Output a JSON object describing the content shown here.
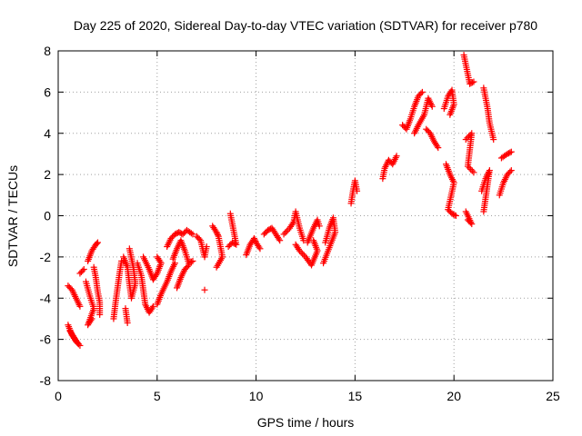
{
  "chart_data": {
    "type": "scatter",
    "title": "Day 225 of 2020, Sidereal Day-to-day VTEC variation (SDTVAR) for receiver p780",
    "xlabel": "GPS time / hours",
    "ylabel": "SDTVAR / TECUs",
    "xlim": [
      0,
      25
    ],
    "ylim": [
      -8,
      8
    ],
    "xticks": [
      0,
      5,
      10,
      15,
      20,
      25
    ],
    "yticks": [
      -8,
      -6,
      -4,
      -2,
      0,
      2,
      4,
      6,
      8
    ],
    "grid": true,
    "marker": "+",
    "color": "#ff0000",
    "series": [
      {
        "name": "SDTVAR",
        "segments": [
          [
            [
              0.5,
              -3.4
            ],
            [
              0.7,
              -3.6
            ],
            [
              0.9,
              -4.0
            ],
            [
              1.1,
              -4.4
            ]
          ],
          [
            [
              0.5,
              -5.3
            ],
            [
              0.7,
              -5.8
            ],
            [
              0.9,
              -6.1
            ],
            [
              1.1,
              -6.3
            ]
          ],
          [
            [
              0.6,
              -5.6
            ],
            [
              0.8,
              -5.9
            ],
            [
              1.0,
              -6.2
            ]
          ],
          [
            [
              1.1,
              -2.8
            ],
            [
              1.3,
              -2.6
            ]
          ],
          [
            [
              1.4,
              -3.2
            ],
            [
              1.6,
              -3.9
            ],
            [
              1.8,
              -4.5
            ],
            [
              1.5,
              -5.3
            ],
            [
              1.7,
              -5.0
            ]
          ],
          [
            [
              1.5,
              -2.2
            ],
            [
              1.7,
              -1.7
            ],
            [
              1.9,
              -1.4
            ],
            [
              2.0,
              -1.3
            ]
          ],
          [
            [
              1.8,
              -2.5
            ],
            [
              1.9,
              -3.0
            ],
            [
              2.0,
              -3.7
            ],
            [
              2.1,
              -4.2
            ],
            [
              2.1,
              -4.8
            ]
          ],
          [
            [
              2.8,
              -5.0
            ],
            [
              2.9,
              -4.2
            ],
            [
              3.0,
              -3.5
            ],
            [
              3.1,
              -2.8
            ],
            [
              3.2,
              -2.2
            ]
          ],
          [
            [
              3.3,
              -2.0
            ],
            [
              3.5,
              -2.5
            ],
            [
              3.6,
              -3.3
            ],
            [
              3.7,
              -4.0
            ],
            [
              3.9,
              -3.3
            ],
            [
              3.8,
              -2.5
            ],
            [
              3.6,
              -1.6
            ]
          ],
          [
            [
              3.4,
              -4.5
            ],
            [
              3.5,
              -5.2
            ]
          ],
          [
            [
              4.0,
              -2.3
            ],
            [
              4.2,
              -2.9
            ],
            [
              4.3,
              -3.6
            ],
            [
              4.4,
              -4.3
            ],
            [
              4.6,
              -4.7
            ],
            [
              4.8,
              -4.4
            ]
          ],
          [
            [
              4.3,
              -2.0
            ],
            [
              4.6,
              -2.6
            ],
            [
              4.8,
              -3.1
            ],
            [
              5.0,
              -2.8
            ],
            [
              5.2,
              -2.3
            ],
            [
              5.0,
              -2.0
            ]
          ],
          [
            [
              5.0,
              -4.3
            ],
            [
              5.2,
              -3.8
            ],
            [
              5.5,
              -3.2
            ],
            [
              5.7,
              -2.7
            ],
            [
              5.9,
              -2.3
            ]
          ],
          [
            [
              5.5,
              -1.5
            ],
            [
              5.7,
              -1.1
            ],
            [
              5.9,
              -0.9
            ],
            [
              6.1,
              -0.8
            ],
            [
              6.3,
              -0.9
            ],
            [
              6.5,
              -0.7
            ],
            [
              6.8,
              -0.9
            ]
          ],
          [
            [
              5.8,
              -2.1
            ],
            [
              6.0,
              -1.6
            ],
            [
              6.2,
              -1.2
            ],
            [
              6.4,
              -1.7
            ],
            [
              6.6,
              -2.3
            ],
            [
              6.8,
              -2.2
            ]
          ],
          [
            [
              6.0,
              -3.5
            ],
            [
              6.2,
              -3.0
            ],
            [
              6.4,
              -2.6
            ],
            [
              6.6,
              -2.4
            ]
          ],
          [
            [
              7.0,
              -1.0
            ],
            [
              7.2,
              -1.2
            ],
            [
              7.4,
              -2.0
            ],
            [
              7.5,
              -1.5
            ]
          ],
          [
            [
              7.4,
              -3.6
            ]
          ],
          [
            [
              7.8,
              -0.5
            ],
            [
              8.0,
              -0.8
            ],
            [
              8.1,
              -1.0
            ],
            [
              8.2,
              -1.5
            ],
            [
              8.3,
              -2.0
            ],
            [
              8.0,
              -2.5
            ]
          ],
          [
            [
              8.6,
              -1.5
            ],
            [
              8.8,
              -1.3
            ],
            [
              9.0,
              -1.4
            ],
            [
              8.7,
              0.1
            ]
          ],
          [
            [
              9.5,
              -1.9
            ],
            [
              9.7,
              -1.4
            ],
            [
              9.9,
              -1.1
            ],
            [
              10.0,
              -1.3
            ],
            [
              10.2,
              -1.6
            ]
          ],
          [
            [
              10.4,
              -0.9
            ],
            [
              10.6,
              -0.7
            ],
            [
              10.8,
              -0.6
            ],
            [
              11.0,
              -0.9
            ],
            [
              11.2,
              -1.2
            ]
          ],
          [
            [
              11.4,
              -0.9
            ],
            [
              11.7,
              -0.6
            ],
            [
              11.9,
              -0.3
            ],
            [
              12.0,
              0.2
            ],
            [
              12.2,
              -0.6
            ],
            [
              12.4,
              -1.2
            ]
          ],
          [
            [
              12.0,
              -1.4
            ],
            [
              12.2,
              -1.7
            ],
            [
              12.5,
              -2.0
            ],
            [
              12.8,
              -2.4
            ],
            [
              13.1,
              -1.7
            ],
            [
              12.9,
              -1.2
            ]
          ],
          [
            [
              12.6,
              -1.3
            ],
            [
              12.9,
              -0.6
            ],
            [
              13.1,
              -0.2
            ],
            [
              13.2,
              -0.5
            ]
          ],
          [
            [
              13.5,
              -1.3
            ],
            [
              13.7,
              -0.6
            ],
            [
              13.9,
              -0.1
            ],
            [
              14.0,
              -0.8
            ],
            [
              13.4,
              -2.3
            ]
          ],
          [
            [
              14.8,
              0.6
            ],
            [
              14.9,
              1.2
            ],
            [
              15.0,
              1.7
            ],
            [
              15.1,
              1.2
            ]
          ],
          [
            [
              16.4,
              1.8
            ],
            [
              16.5,
              2.3
            ],
            [
              16.7,
              2.7
            ],
            [
              16.9,
              2.5
            ],
            [
              17.1,
              2.9
            ]
          ],
          [
            [
              17.4,
              4.4
            ],
            [
              17.6,
              4.2
            ],
            [
              17.8,
              4.7
            ],
            [
              18.0,
              5.3
            ],
            [
              18.2,
              5.8
            ],
            [
              18.4,
              6.0
            ]
          ],
          [
            [
              18.0,
              4.0
            ],
            [
              18.2,
              4.4
            ],
            [
              18.5,
              4.9
            ],
            [
              18.7,
              5.7
            ],
            [
              18.9,
              5.3
            ]
          ],
          [
            [
              18.6,
              4.2
            ],
            [
              18.8,
              4.0
            ],
            [
              19.0,
              3.6
            ],
            [
              19.2,
              3.3
            ]
          ],
          [
            [
              19.5,
              5.2
            ],
            [
              19.7,
              5.8
            ],
            [
              19.9,
              6.1
            ],
            [
              20.0,
              5.4
            ],
            [
              19.8,
              4.9
            ]
          ],
          [
            [
              19.6,
              2.5
            ],
            [
              19.8,
              2.0
            ],
            [
              20.0,
              1.6
            ],
            [
              19.7,
              0.3
            ],
            [
              19.9,
              0.1
            ],
            [
              20.1,
              0.0
            ]
          ],
          [
            [
              20.5,
              7.8
            ],
            [
              20.8,
              6.4
            ],
            [
              21.0,
              6.5
            ]
          ],
          [
            [
              20.6,
              3.7
            ],
            [
              20.9,
              4.0
            ],
            [
              20.7,
              2.4
            ],
            [
              21.0,
              2.1
            ]
          ],
          [
            [
              20.7,
              -0.2
            ],
            [
              20.9,
              -0.4
            ],
            [
              20.6,
              0.2
            ]
          ],
          [
            [
              21.5,
              6.2
            ],
            [
              21.7,
              5.2
            ],
            [
              21.8,
              4.5
            ],
            [
              22.0,
              3.7
            ]
          ],
          [
            [
              21.4,
              1.2
            ],
            [
              21.6,
              1.8
            ],
            [
              21.8,
              2.2
            ],
            [
              21.5,
              0.2
            ]
          ],
          [
            [
              22.3,
              1.0
            ],
            [
              22.5,
              1.6
            ],
            [
              22.7,
              2.0
            ],
            [
              22.9,
              2.2
            ]
          ],
          [
            [
              22.4,
              2.8
            ],
            [
              22.7,
              3.0
            ],
            [
              22.9,
              3.1
            ]
          ]
        ]
      }
    ]
  }
}
